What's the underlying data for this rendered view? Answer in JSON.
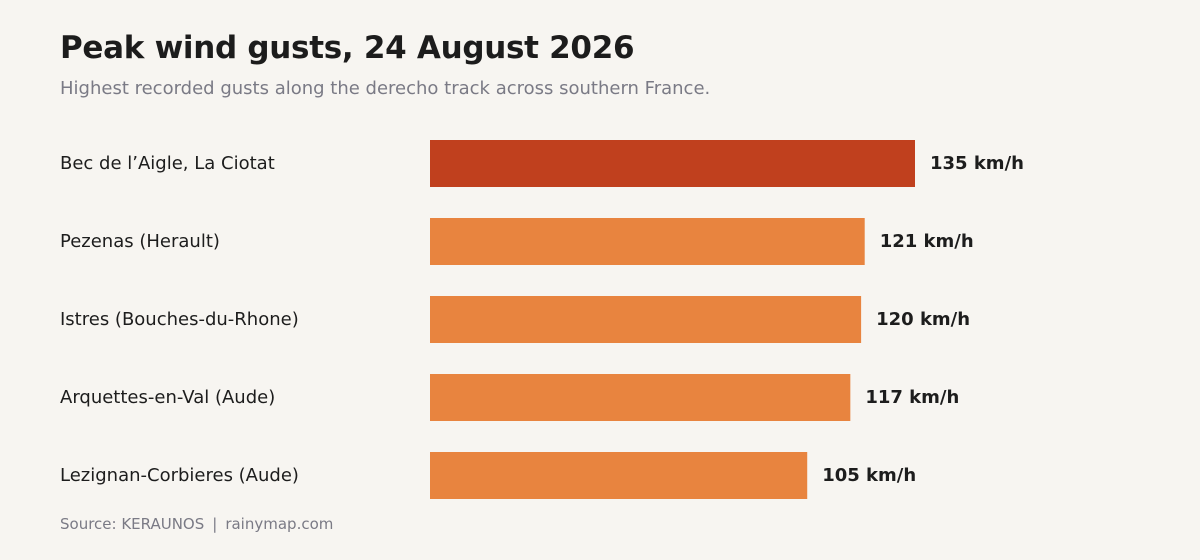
{
  "chart_data": {
    "type": "bar",
    "orientation": "horizontal",
    "title": "Peak wind gusts, 24 August 2026",
    "subtitle": "Highest recorded gusts along the derecho track across southern France.",
    "categories": [
      "Bec de l’Aigle, La Ciotat",
      "Pezenas (Herault)",
      "Istres (Bouches-du-Rhone)",
      "Arquettes-en-Val (Aude)",
      "Lezignan-Corbieres (Aude)"
    ],
    "values": [
      135,
      121,
      120,
      117,
      105
    ],
    "value_labels": [
      "135 km/h",
      "121 km/h",
      "120 km/h",
      "117 km/h",
      "105 km/h"
    ],
    "unit": "km/h",
    "xlim": [
      0,
      135
    ],
    "grid": false,
    "legend": "none",
    "colors": {
      "highlight": "#c0401e",
      "default": "#e8843f"
    },
    "highlight_index": 0
  },
  "source": {
    "label": "Source: KERAUNOS",
    "separator": "|",
    "site": "rainymap.com"
  }
}
